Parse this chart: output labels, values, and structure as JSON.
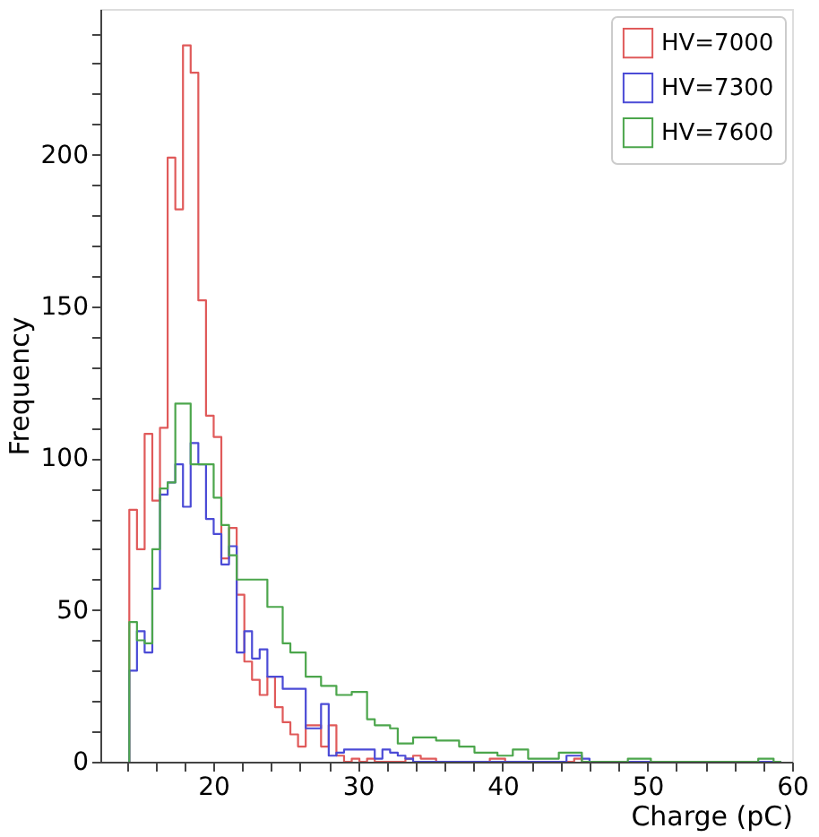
{
  "chart_data": {
    "type": "histogram",
    "xlabel": "Charge (pC)",
    "ylabel": "Frequency",
    "bins": [
      14.2,
      14.73,
      15.26,
      15.79,
      16.32,
      16.85,
      17.38,
      17.91,
      18.44,
      18.97,
      19.5,
      20.03,
      20.56,
      21.09,
      21.62,
      22.15,
      22.68,
      23.21,
      23.74,
      24.27,
      24.8,
      25.33,
      25.86,
      26.39,
      26.92,
      27.45,
      27.98,
      28.51,
      29.04,
      29.57,
      30.1,
      30.63,
      31.16,
      31.69,
      32.22,
      32.75,
      33.28,
      33.81,
      34.34,
      34.87,
      35.4,
      35.93,
      36.46,
      36.99,
      37.52,
      38.05,
      38.58,
      39.11,
      39.64,
      40.17,
      40.7,
      41.23,
      41.76,
      42.29,
      42.82,
      43.35,
      43.88,
      44.41,
      44.94,
      45.47,
      46.0,
      46.53,
      47.06,
      47.59,
      48.12,
      48.65,
      49.18,
      49.71,
      50.24,
      50.77,
      51.3,
      51.83,
      52.36,
      52.89,
      53.42,
      53.95,
      54.48,
      55.01,
      55.54,
      56.07,
      56.6,
      57.13,
      57.66,
      58.19,
      58.72,
      59.25
    ],
    "series": [
      {
        "name": "HV=7000",
        "color": "#e05a5a",
        "values": [
          83,
          70,
          108,
          86,
          110,
          199,
          182,
          236,
          227,
          152,
          114,
          107,
          67,
          77,
          55,
          33,
          27,
          22,
          28,
          18,
          13,
          9,
          5,
          12,
          12,
          5,
          12,
          2,
          0,
          1,
          0,
          1,
          0,
          0,
          0,
          0,
          1,
          2,
          1,
          1,
          0,
          0,
          0,
          0,
          0,
          0,
          0,
          1,
          1,
          0,
          0,
          0,
          0,
          0,
          0,
          0,
          0,
          0,
          1,
          0,
          0,
          0,
          0,
          0,
          0,
          0,
          0,
          0,
          0,
          0,
          0,
          0,
          0,
          0,
          0,
          0,
          0,
          0,
          0,
          0,
          0,
          0,
          0,
          0,
          0
        ]
      },
      {
        "name": "HV=7300",
        "color": "#4b4bd6",
        "values": [
          30,
          43,
          36,
          57,
          88,
          92,
          98,
          84,
          105,
          98,
          80,
          75,
          65,
          71,
          36,
          43,
          34,
          37,
          28,
          28,
          24,
          24,
          24,
          11,
          11,
          19,
          2,
          3,
          4,
          4,
          4,
          4,
          1,
          4,
          3,
          2,
          1,
          0,
          0,
          0,
          0,
          0,
          0,
          0,
          0,
          0,
          0,
          0,
          0,
          0,
          0,
          0,
          0,
          0,
          0,
          0,
          0,
          2,
          2,
          1,
          0,
          0,
          0,
          0,
          0,
          0,
          0,
          0,
          0,
          0,
          0,
          0,
          0,
          0,
          0,
          0,
          0,
          0,
          0,
          0,
          0,
          0,
          0,
          0,
          0
        ]
      },
      {
        "name": "HV=7600",
        "color": "#4ca64c",
        "values": [
          46,
          40,
          39,
          70,
          90,
          92,
          118,
          118,
          98,
          98,
          98,
          87,
          78,
          68,
          60,
          60,
          60,
          60,
          51,
          51,
          39,
          36,
          36,
          28,
          28,
          25,
          25,
          22,
          22,
          23,
          23,
          14,
          12,
          12,
          11,
          6,
          6,
          8,
          8,
          8,
          7,
          7,
          7,
          5,
          5,
          3,
          3,
          3,
          2,
          2,
          4,
          4,
          1,
          1,
          1,
          1,
          3,
          3,
          3,
          0,
          0,
          0,
          0,
          0,
          0,
          1,
          1,
          1,
          0,
          0,
          0,
          0,
          0,
          0,
          0,
          0,
          0,
          0,
          0,
          0,
          0,
          0,
          1,
          1,
          0
        ]
      }
    ],
    "xlim": [
      12.2,
      60
    ],
    "xticks": [
      {
        "value": 14,
        "label": null
      },
      {
        "value": 16,
        "label": null
      },
      {
        "value": 18,
        "label": null
      },
      20,
      {
        "value": 22,
        "label": null
      },
      {
        "value": 24,
        "label": null
      },
      {
        "value": 26,
        "label": null
      },
      {
        "value": 28,
        "label": null
      },
      30,
      {
        "value": 32,
        "label": null
      },
      {
        "value": 34,
        "label": null
      },
      {
        "value": 36,
        "label": null
      },
      {
        "value": 38,
        "label": null
      },
      40,
      {
        "value": 42,
        "label": null
      },
      {
        "value": 44,
        "label": null
      },
      {
        "value": 46,
        "label": null
      },
      {
        "value": 48,
        "label": null
      },
      50,
      {
        "value": 52,
        "label": null
      },
      {
        "value": 54,
        "label": null
      },
      {
        "value": 56,
        "label": null
      },
      {
        "value": 58,
        "label": null
      },
      60
    ],
    "ylim": [
      0,
      248
    ],
    "yticks": [
      0,
      {
        "value": 10,
        "label": null
      },
      {
        "value": 20,
        "label": null
      },
      {
        "value": 30,
        "label": null
      },
      {
        "value": 40,
        "label": null
      },
      50,
      {
        "value": 60,
        "label": null
      },
      {
        "value": 70,
        "label": null
      },
      {
        "value": 80,
        "label": null
      },
      {
        "value": 90,
        "label": null
      },
      100,
      {
        "value": 110,
        "label": null
      },
      {
        "value": 120,
        "label": null
      },
      {
        "value": 130,
        "label": null
      },
      {
        "value": 140,
        "label": null
      },
      150,
      {
        "value": 160,
        "label": null
      },
      {
        "value": 170,
        "label": null
      },
      {
        "value": 180,
        "label": null
      },
      {
        "value": 190,
        "label": null
      },
      200,
      {
        "value": 210,
        "label": null
      },
      {
        "value": 220,
        "label": null
      },
      {
        "value": 230,
        "label": null
      },
      {
        "value": 240,
        "label": null
      }
    ],
    "grid": false,
    "legend": "top right"
  }
}
